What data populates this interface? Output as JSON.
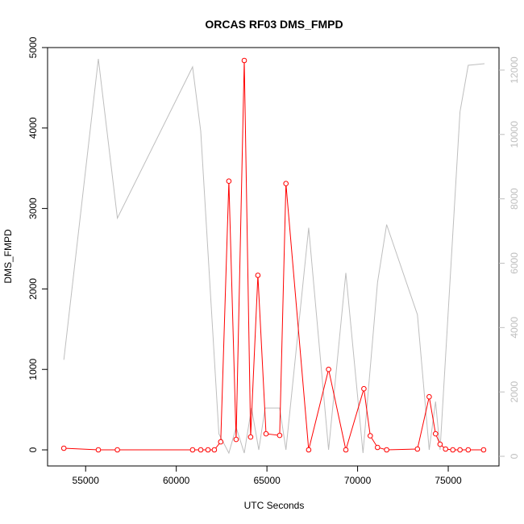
{
  "chart_data": {
    "type": "line",
    "title": "ORCAS RF03 DMS_FMPD",
    "xlabel": "UTC Seconds",
    "ylabel": "DMS_FMPD",
    "xlim": [
      52900,
      77800
    ],
    "ylim_left": [
      -200,
      5000
    ],
    "ylim_right": [
      -300,
      12700
    ],
    "x_ticks": [
      55000,
      60000,
      65000,
      70000,
      75000
    ],
    "y_ticks_left": [
      0,
      1000,
      2000,
      3000,
      4000,
      5000
    ],
    "y_ticks_right": [
      0,
      2000,
      4000,
      6000,
      8000,
      10000,
      12000
    ],
    "colors": {
      "primary": "#ff0000",
      "secondary": "#bebebe"
    },
    "series": [
      {
        "axis": "left",
        "style": "line+points",
        "points": [
          [
            53800,
            20
          ],
          [
            55700,
            0
          ],
          [
            56750,
            0
          ],
          [
            60900,
            0
          ],
          [
            61350,
            0
          ],
          [
            61750,
            0
          ],
          [
            62100,
            0
          ],
          [
            62450,
            100
          ],
          [
            62900,
            3340
          ],
          [
            63300,
            130
          ],
          [
            63750,
            4840
          ],
          [
            64100,
            160
          ],
          [
            64500,
            2170
          ],
          [
            64950,
            200
          ],
          [
            65700,
            180
          ],
          [
            66050,
            3310
          ],
          [
            67300,
            0
          ],
          [
            68400,
            1000
          ],
          [
            69350,
            0
          ],
          [
            70350,
            760
          ],
          [
            70700,
            175
          ],
          [
            71100,
            30
          ],
          [
            71600,
            0
          ],
          [
            73300,
            10
          ],
          [
            73950,
            660
          ],
          [
            74300,
            200
          ],
          [
            74550,
            70
          ],
          [
            74850,
            10
          ],
          [
            75250,
            0
          ],
          [
            75650,
            0
          ],
          [
            76100,
            0
          ],
          [
            76950,
            0
          ]
        ]
      },
      {
        "axis": "right",
        "style": "line",
        "points": [
          [
            53800,
            3000
          ],
          [
            55700,
            12350
          ],
          [
            56750,
            7400
          ],
          [
            60900,
            12100
          ],
          [
            61350,
            10100
          ],
          [
            62350,
            700
          ],
          [
            62900,
            100
          ],
          [
            63300,
            900
          ],
          [
            63750,
            100
          ],
          [
            64150,
            1500
          ],
          [
            64550,
            200
          ],
          [
            64900,
            1500
          ],
          [
            65700,
            1500
          ],
          [
            66050,
            200
          ],
          [
            67300,
            7100
          ],
          [
            68400,
            200
          ],
          [
            69350,
            5700
          ],
          [
            70300,
            100
          ],
          [
            71100,
            5400
          ],
          [
            71600,
            7200
          ],
          [
            73300,
            4400
          ],
          [
            73950,
            200
          ],
          [
            74300,
            1700
          ],
          [
            74550,
            200
          ],
          [
            75650,
            10700
          ],
          [
            76100,
            12150
          ],
          [
            77000,
            12200
          ]
        ]
      }
    ]
  }
}
